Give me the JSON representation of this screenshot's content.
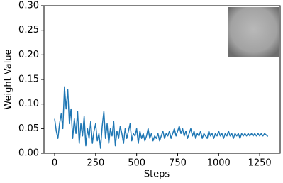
{
  "chart_data": {
    "type": "line",
    "x_label": "Steps",
    "y_label": "Weight Value",
    "color": "#1f77b4",
    "x": [
      0,
      10,
      20,
      30,
      40,
      50,
      60,
      70,
      80,
      90,
      100,
      110,
      120,
      130,
      140,
      150,
      160,
      170,
      180,
      190,
      200,
      210,
      220,
      230,
      240,
      250,
      260,
      270,
      280,
      290,
      300,
      310,
      320,
      330,
      340,
      350,
      360,
      370,
      380,
      390,
      400,
      410,
      420,
      430,
      440,
      450,
      460,
      470,
      480,
      490,
      500,
      510,
      520,
      530,
      540,
      550,
      560,
      570,
      580,
      590,
      600,
      610,
      620,
      630,
      640,
      650,
      660,
      670,
      680,
      690,
      700,
      710,
      720,
      730,
      740,
      750,
      760,
      770,
      780,
      790,
      800,
      810,
      820,
      830,
      840,
      850,
      860,
      870,
      880,
      890,
      900,
      910,
      920,
      930,
      940,
      950,
      960,
      970,
      980,
      990,
      1000,
      1010,
      1020,
      1030,
      1040,
      1050,
      1060,
      1070,
      1080,
      1090,
      1100,
      1110,
      1120,
      1130,
      1140,
      1150,
      1160,
      1170,
      1180,
      1190,
      1200,
      1210,
      1220,
      1230,
      1240,
      1250,
      1260,
      1270,
      1280,
      1290,
      1300
    ],
    "values": [
      0.07,
      0.045,
      0.03,
      0.06,
      0.08,
      0.05,
      0.135,
      0.09,
      0.13,
      0.06,
      0.09,
      0.03,
      0.07,
      0.04,
      0.085,
      0.02,
      0.06,
      0.035,
      0.075,
      0.015,
      0.05,
      0.03,
      0.065,
      0.02,
      0.045,
      0.06,
      0.025,
      0.04,
      0.01,
      0.055,
      0.085,
      0.03,
      0.06,
      0.02,
      0.05,
      0.035,
      0.065,
      0.015,
      0.045,
      0.03,
      0.055,
      0.04,
      0.02,
      0.05,
      0.03,
      0.045,
      0.06,
      0.025,
      0.04,
      0.035,
      0.05,
      0.02,
      0.045,
      0.03,
      0.04,
      0.025,
      0.035,
      0.05,
      0.03,
      0.04,
      0.025,
      0.035,
      0.03,
      0.04,
      0.025,
      0.035,
      0.045,
      0.03,
      0.04,
      0.035,
      0.045,
      0.03,
      0.04,
      0.05,
      0.035,
      0.045,
      0.055,
      0.04,
      0.05,
      0.035,
      0.045,
      0.03,
      0.04,
      0.05,
      0.035,
      0.045,
      0.03,
      0.04,
      0.035,
      0.045,
      0.03,
      0.04,
      0.035,
      0.03,
      0.045,
      0.035,
      0.04,
      0.03,
      0.04,
      0.035,
      0.045,
      0.035,
      0.04,
      0.03,
      0.04,
      0.035,
      0.045,
      0.035,
      0.04,
      0.03,
      0.04,
      0.035,
      0.04,
      0.03,
      0.04,
      0.035,
      0.04,
      0.035,
      0.04,
      0.035,
      0.04,
      0.035,
      0.04,
      0.035,
      0.04,
      0.035,
      0.04,
      0.035,
      0.04,
      0.037,
      0.034
    ],
    "xlim": [
      -65,
      1375
    ],
    "ylim": [
      0,
      0.3
    ],
    "xticks": [
      0,
      250,
      500,
      750,
      1000,
      1250
    ],
    "yticks": [
      {
        "value": 0,
        "label": "0.00"
      },
      {
        "value": 0.05,
        "label": "0.05"
      },
      {
        "value": 0.1,
        "label": "0.10"
      },
      {
        "value": 0.15,
        "label": "0.15"
      },
      {
        "value": 0.2,
        "label": "0.20"
      },
      {
        "value": 0.25,
        "label": "0.25"
      },
      {
        "value": 0.3,
        "label": "0.30"
      }
    ]
  }
}
